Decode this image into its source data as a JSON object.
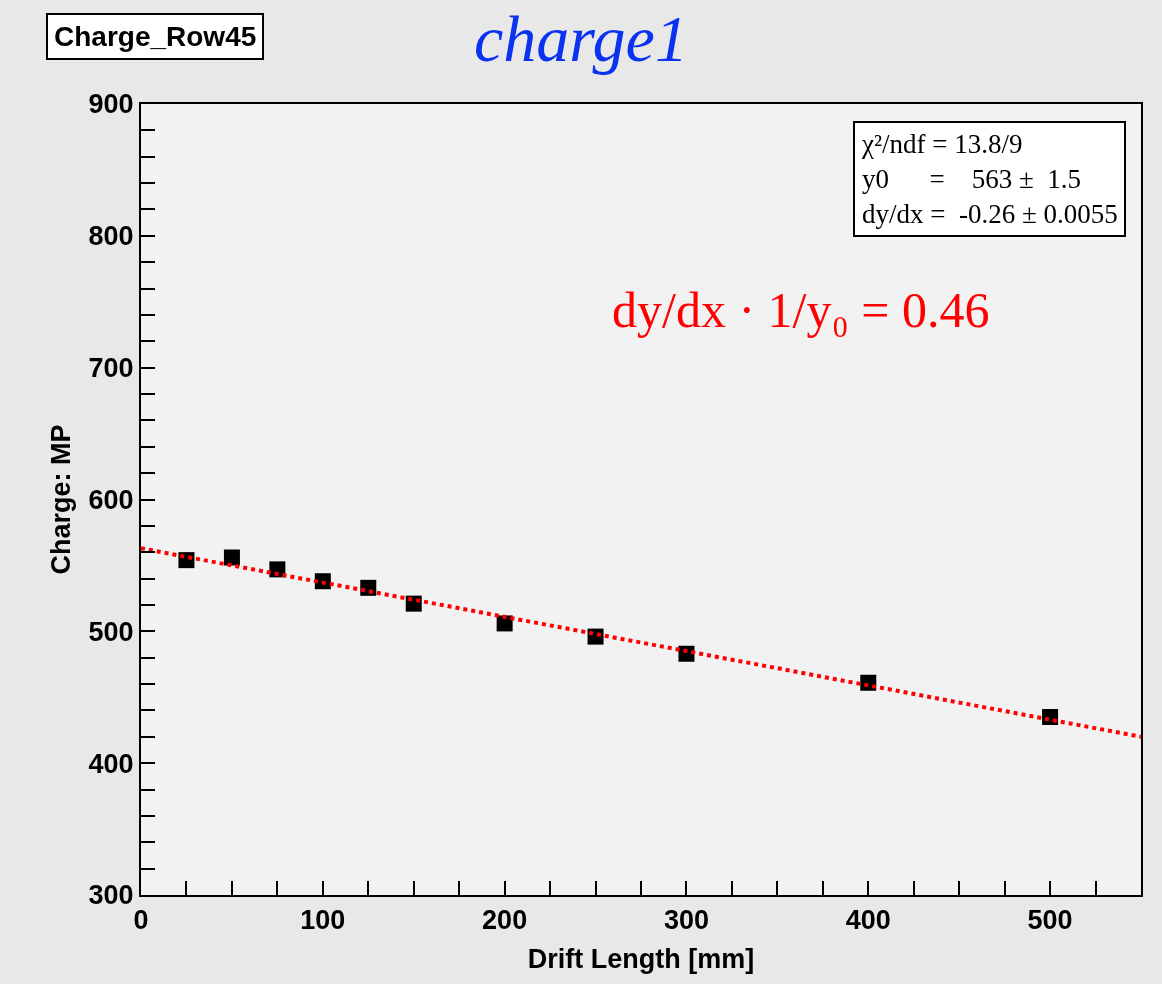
{
  "chart_data": {
    "type": "scatter",
    "title": "charge1",
    "xlabel": "Drift Length [mm]",
    "ylabel": "Charge: MP",
    "x": [
      25,
      50,
      75,
      100,
      125,
      150,
      200,
      250,
      300,
      400,
      500
    ],
    "series": [
      {
        "color": "#000000",
        "marker": "square",
        "values": [
          554,
          556,
          547,
          538,
          533,
          521,
          506,
          496,
          483,
          461,
          435
        ]
      },
      {
        "type": "line",
        "color": "#ff0000",
        "line_style": "dotted",
        "marker": "none",
        "x": [
          0,
          550
        ],
        "values": [
          563,
          420
        ]
      }
    ],
    "xlim": [
      0,
      550
    ],
    "xticks": [
      0,
      {
        "value": 25,
        "label": null
      },
      {
        "value": 50,
        "label": null
      },
      {
        "value": 75,
        "label": null
      },
      100,
      {
        "value": 125,
        "label": null
      },
      {
        "value": 150,
        "label": null
      },
      {
        "value": 175,
        "label": null
      },
      200,
      {
        "value": 225,
        "label": null
      },
      {
        "value": 250,
        "label": null
      },
      {
        "value": 275,
        "label": null
      },
      300,
      {
        "value": 325,
        "label": null
      },
      {
        "value": 350,
        "label": null
      },
      {
        "value": 375,
        "label": null
      },
      400,
      {
        "value": 425,
        "label": null
      },
      {
        "value": 450,
        "label": null
      },
      {
        "value": 475,
        "label": null
      },
      500,
      {
        "value": 525,
        "label": null
      }
    ],
    "ylim": [
      300,
      900
    ],
    "yticks": [
      300,
      {
        "value": 320,
        "label": null
      },
      {
        "value": 340,
        "label": null
      },
      {
        "value": 360,
        "label": null
      },
      {
        "value": 380,
        "label": null
      },
      400,
      {
        "value": 420,
        "label": null
      },
      {
        "value": 440,
        "label": null
      },
      {
        "value": 460,
        "label": null
      },
      {
        "value": 480,
        "label": null
      },
      500,
      {
        "value": 520,
        "label": null
      },
      {
        "value": 540,
        "label": null
      },
      {
        "value": 560,
        "label": null
      },
      {
        "value": 580,
        "label": null
      },
      600,
      {
        "value": 620,
        "label": null
      },
      {
        "value": 640,
        "label": null
      },
      {
        "value": 660,
        "label": null
      },
      {
        "value": 680,
        "label": null
      },
      700,
      {
        "value": 720,
        "label": null
      },
      {
        "value": 740,
        "label": null
      },
      {
        "value": 760,
        "label": null
      },
      {
        "value": 780,
        "label": null
      },
      800,
      {
        "value": 820,
        "label": null
      },
      {
        "value": 840,
        "label": null
      },
      {
        "value": 860,
        "label": null
      },
      {
        "value": 880,
        "label": null
      },
      900
    ],
    "grid": false,
    "annotations": [
      "Charge_Row45",
      "χ²/ndf = 13.8/9\ny0      =    563 ±  1.5\ndy/dx =  -0.26 ± 0.0055",
      "dy/dx · 1/y₀ = 0.46"
    ]
  }
}
